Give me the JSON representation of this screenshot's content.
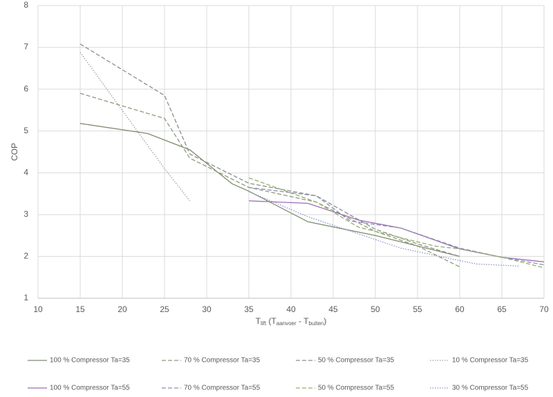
{
  "chart_data": {
    "type": "line",
    "ylabel": "COP",
    "xlabel": [
      {
        "text": "T"
      },
      {
        "text": "lift",
        "sub": true
      },
      {
        "text": " (T"
      },
      {
        "text": "aanvoer",
        "sub": true
      },
      {
        "text": " - T"
      },
      {
        "text": "buiten",
        "sub": true
      },
      {
        "text": ")"
      }
    ],
    "xlim": [
      10,
      70
    ],
    "xticks": [
      10,
      15,
      20,
      25,
      30,
      35,
      40,
      45,
      50,
      55,
      60,
      65,
      70
    ],
    "ylim": [
      1,
      8
    ],
    "yticks": [
      1,
      2,
      3,
      4,
      5,
      6,
      7,
      8
    ],
    "grid": true,
    "series": [
      {
        "name": "100 % Compressor Ta=35",
        "color": "#7d8c6c",
        "style": "solid",
        "x": [
          15,
          23,
          28,
          33,
          35,
          42,
          50,
          55,
          60
        ],
        "values": [
          5.18,
          4.94,
          4.55,
          3.74,
          3.56,
          2.83,
          2.5,
          2.25,
          2.0
        ]
      },
      {
        "name": "70 % Compressor Ta=35",
        "color": "#8c9a7c",
        "style": "dashed",
        "x": [
          15,
          25,
          28,
          35,
          43,
          50,
          55,
          60
        ],
        "values": [
          5.9,
          5.3,
          4.35,
          3.65,
          3.3,
          2.6,
          2.25,
          1.75
        ]
      },
      {
        "name": "50 % Compressor Ta=35",
        "color": "#8c8c8c",
        "style": "dashed",
        "x": [
          15,
          25,
          28,
          35,
          43,
          50,
          55,
          60
        ],
        "values": [
          7.08,
          5.85,
          4.45,
          3.75,
          3.45,
          2.65,
          2.3,
          2.0
        ]
      },
      {
        "name": "10 % Compressor Ta=35",
        "color": "#a0a0a0",
        "style": "dotted",
        "x": [
          15,
          25,
          28
        ],
        "values": [
          6.88,
          4.1,
          3.33
        ]
      },
      {
        "name": "100 % Compressor Ta=55",
        "color": "#9b6cb8",
        "style": "solid",
        "x": [
          35,
          42,
          48,
          53,
          60,
          65,
          70
        ],
        "values": [
          3.33,
          3.27,
          2.87,
          2.68,
          2.18,
          1.98,
          1.87
        ]
      },
      {
        "name": "70 % Compressor Ta=55",
        "color": "#8a8fae",
        "style": "dashed",
        "x": [
          35,
          43,
          47,
          53,
          60,
          65,
          70
        ],
        "values": [
          3.65,
          3.45,
          2.85,
          2.68,
          2.2,
          1.98,
          1.8
        ]
      },
      {
        "name": "50 % Compressor Ta=55",
        "color": "#8fb06a",
        "style": "dashed",
        "x": [
          35,
          43,
          48,
          57,
          60,
          65,
          70
        ],
        "values": [
          3.88,
          3.3,
          2.7,
          2.25,
          2.18,
          1.98,
          1.73
        ]
      },
      {
        "name": "30 % Compressor Ta=55",
        "color": "#8a90c4",
        "style": "dotted",
        "x": [
          35,
          42,
          53,
          60,
          62,
          67
        ],
        "values": [
          3.55,
          2.95,
          2.2,
          1.9,
          1.82,
          1.77
        ]
      }
    ]
  }
}
